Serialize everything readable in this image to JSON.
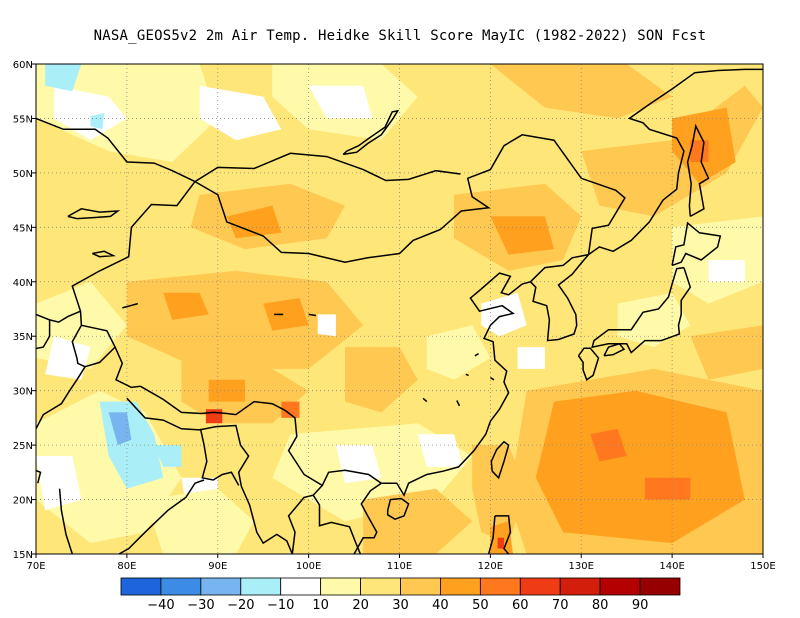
{
  "title": "NASA_GEOS5v2  2m Air Temp. Heidke Skill Score MayIC (1982-2022) SON Fcst",
  "map": {
    "lon_range": [
      70,
      150
    ],
    "lat_range": [
      15,
      60
    ],
    "lon_ticks": [
      "70E",
      "80E",
      "90E",
      "100E",
      "110E",
      "120E",
      "130E",
      "140E",
      "150E"
    ],
    "lat_ticks": [
      "15N",
      "20N",
      "25N",
      "30N",
      "35N",
      "40N",
      "45N",
      "50N",
      "55N",
      "60N"
    ]
  },
  "colorbar": {
    "colors": [
      "#1e64dc",
      "#3c8ce6",
      "#78b4f0",
      "#aaeef8",
      "#ffffff",
      "#fffaaa",
      "#ffe678",
      "#ffc850",
      "#ffa01e",
      "#ff781e",
      "#f03c14",
      "#d21e0a",
      "#b40000",
      "#960000"
    ],
    "labels": [
      "−40",
      "−30",
      "−20",
      "−10",
      "10",
      "20",
      "30",
      "40",
      "50",
      "60",
      "70",
      "80",
      "90"
    ]
  },
  "regions": {
    "base_color": "#ffe678",
    "patches": [
      {
        "c": "#fffaaa",
        "pts": [
          [
            70,
            60
          ],
          [
            88,
            60
          ],
          [
            90,
            55
          ],
          [
            85,
            51
          ],
          [
            78,
            52
          ],
          [
            70,
            55
          ]
        ]
      },
      {
        "c": "#ffffff",
        "pts": [
          [
            72,
            58
          ],
          [
            78,
            57
          ],
          [
            80,
            55
          ],
          [
            76,
            53
          ],
          [
            72,
            55
          ]
        ]
      },
      {
        "c": "#aaeef8",
        "pts": [
          [
            71,
            60
          ],
          [
            75,
            60
          ],
          [
            74,
            57.5
          ],
          [
            71,
            58
          ]
        ]
      },
      {
        "c": "#aaeef8",
        "pts": [
          [
            76,
            55.2
          ],
          [
            77.5,
            55.5
          ],
          [
            77.3,
            54
          ],
          [
            76,
            54.3
          ]
        ]
      },
      {
        "c": "#ffffff",
        "pts": [
          [
            88,
            58
          ],
          [
            95,
            57
          ],
          [
            97,
            54
          ],
          [
            92,
            53
          ],
          [
            88,
            55
          ]
        ]
      },
      {
        "c": "#fffaaa",
        "pts": [
          [
            96,
            60
          ],
          [
            108,
            60
          ],
          [
            112,
            57
          ],
          [
            108,
            53
          ],
          [
            100,
            54
          ],
          [
            96,
            57
          ]
        ]
      },
      {
        "c": "#ffffff",
        "pts": [
          [
            100,
            58
          ],
          [
            106,
            58
          ],
          [
            107,
            55
          ],
          [
            102,
            55
          ]
        ]
      },
      {
        "c": "#ffc850",
        "pts": [
          [
            120,
            60
          ],
          [
            135,
            60
          ],
          [
            140,
            57
          ],
          [
            134,
            55
          ],
          [
            126,
            56
          ]
        ]
      },
      {
        "c": "#ffc850",
        "pts": [
          [
            130,
            52
          ],
          [
            140,
            53
          ],
          [
            148,
            58
          ],
          [
            150,
            56
          ],
          [
            146,
            50
          ],
          [
            138,
            46
          ],
          [
            132,
            47
          ]
        ]
      },
      {
        "c": "#ffa01e",
        "pts": [
          [
            140,
            55
          ],
          [
            146,
            56
          ],
          [
            147,
            51
          ],
          [
            143,
            49
          ],
          [
            140,
            52
          ]
        ]
      },
      {
        "c": "#ff781e",
        "pts": [
          [
            142,
            53
          ],
          [
            144,
            53
          ],
          [
            144,
            51
          ],
          [
            142,
            51
          ]
        ]
      },
      {
        "c": "#ffc850",
        "pts": [
          [
            88,
            48
          ],
          [
            98,
            49
          ],
          [
            104,
            47
          ],
          [
            102,
            44
          ],
          [
            93,
            43
          ],
          [
            87,
            45
          ]
        ]
      },
      {
        "c": "#ffa01e",
        "pts": [
          [
            91,
            46
          ],
          [
            96,
            47
          ],
          [
            97,
            44.5
          ],
          [
            92,
            44
          ]
        ]
      },
      {
        "c": "#ffc850",
        "pts": [
          [
            116,
            48
          ],
          [
            126,
            49
          ],
          [
            130,
            46
          ],
          [
            128,
            42
          ],
          [
            122,
            41
          ],
          [
            116,
            44
          ]
        ]
      },
      {
        "c": "#ffa01e",
        "pts": [
          [
            120,
            46
          ],
          [
            126,
            46
          ],
          [
            127,
            43
          ],
          [
            122,
            42.5
          ]
        ]
      },
      {
        "c": "#ffc850",
        "pts": [
          [
            80,
            40
          ],
          [
            92,
            41
          ],
          [
            102,
            40
          ],
          [
            106,
            36
          ],
          [
            100,
            32
          ],
          [
            88,
            32
          ],
          [
            80,
            35
          ]
        ]
      },
      {
        "c": "#ffa01e",
        "pts": [
          [
            95,
            38
          ],
          [
            99,
            38.5
          ],
          [
            100,
            36
          ],
          [
            96,
            35.5
          ]
        ]
      },
      {
        "c": "#ffa01e",
        "pts": [
          [
            84,
            39
          ],
          [
            88,
            39
          ],
          [
            89,
            37
          ],
          [
            85,
            36.5
          ]
        ]
      },
      {
        "c": "#fffaaa",
        "pts": [
          [
            70,
            38
          ],
          [
            76,
            40
          ],
          [
            80,
            36
          ],
          [
            76,
            32
          ],
          [
            70,
            33
          ]
        ]
      },
      {
        "c": "#ffffff",
        "pts": [
          [
            72,
            35
          ],
          [
            76,
            34
          ],
          [
            75,
            31
          ],
          [
            71,
            31.5
          ]
        ]
      },
      {
        "c": "#ffffff",
        "pts": [
          [
            101,
            37
          ],
          [
            103,
            37
          ],
          [
            103,
            35
          ],
          [
            101,
            35.2
          ]
        ]
      },
      {
        "c": "#ffc850",
        "pts": [
          [
            86,
            33
          ],
          [
            96,
            32
          ],
          [
            100,
            30
          ],
          [
            96,
            27
          ],
          [
            90,
            27
          ],
          [
            86,
            29
          ]
        ]
      },
      {
        "c": "#ffa01e",
        "pts": [
          [
            89,
            31
          ],
          [
            93,
            31
          ],
          [
            93,
            29
          ],
          [
            89,
            29
          ]
        ]
      },
      {
        "c": "#ff781e",
        "pts": [
          [
            97,
            29
          ],
          [
            99,
            29
          ],
          [
            99,
            27.5
          ],
          [
            97,
            27.5
          ]
        ]
      },
      {
        "c": "#f03c14",
        "pts": [
          [
            88.7,
            28.3
          ],
          [
            90.5,
            28.3
          ],
          [
            90.5,
            27
          ],
          [
            88.7,
            27
          ]
        ]
      },
      {
        "c": "#fffaaa",
        "pts": [
          [
            70,
            27
          ],
          [
            77,
            30
          ],
          [
            82,
            28
          ],
          [
            86,
            22
          ],
          [
            82,
            17
          ],
          [
            76,
            16
          ],
          [
            70,
            20
          ]
        ]
      },
      {
        "c": "#aaeef8",
        "pts": [
          [
            77,
            29
          ],
          [
            81,
            29
          ],
          [
            83,
            26
          ],
          [
            84,
            22
          ],
          [
            80,
            21
          ],
          [
            78,
            24
          ]
        ]
      },
      {
        "c": "#78b4f0",
        "pts": [
          [
            78,
            28
          ],
          [
            80,
            28
          ],
          [
            80.5,
            25.5
          ],
          [
            79,
            25
          ]
        ]
      },
      {
        "c": "#aaeef8",
        "pts": [
          [
            83,
            25
          ],
          [
            86,
            25
          ],
          [
            86,
            23
          ],
          [
            84,
            23
          ]
        ]
      },
      {
        "c": "#ffffff",
        "pts": [
          [
            70,
            24
          ],
          [
            74,
            24
          ],
          [
            75,
            20
          ],
          [
            71,
            19
          ]
        ]
      },
      {
        "c": "#ffffff",
        "pts": [
          [
            86,
            22
          ],
          [
            90,
            22
          ],
          [
            90,
            18
          ],
          [
            87,
            17
          ]
        ]
      },
      {
        "c": "#fffaaa",
        "pts": [
          [
            98,
            26
          ],
          [
            112,
            27
          ],
          [
            118,
            24
          ],
          [
            114,
            20
          ],
          [
            104,
            18
          ],
          [
            96,
            22
          ]
        ]
      },
      {
        "c": "#ffffff",
        "pts": [
          [
            103,
            25
          ],
          [
            107,
            25
          ],
          [
            108,
            22
          ],
          [
            104,
            21.5
          ]
        ]
      },
      {
        "c": "#ffffff",
        "pts": [
          [
            112,
            26
          ],
          [
            116,
            26
          ],
          [
            117,
            23
          ],
          [
            113,
            23
          ]
        ]
      },
      {
        "c": "#ffc850",
        "pts": [
          [
            104,
            34
          ],
          [
            110,
            34
          ],
          [
            112,
            31
          ],
          [
            108,
            28
          ],
          [
            104,
            29
          ]
        ]
      },
      {
        "c": "#fffaaa",
        "pts": [
          [
            113,
            35
          ],
          [
            118,
            36
          ],
          [
            120,
            33
          ],
          [
            116,
            31
          ],
          [
            113,
            32
          ]
        ]
      },
      {
        "c": "#ffffff",
        "pts": [
          [
            119,
            38
          ],
          [
            123,
            39
          ],
          [
            124,
            36
          ],
          [
            121,
            35
          ],
          [
            119,
            36
          ]
        ]
      },
      {
        "c": "#ffffff",
        "pts": [
          [
            123,
            34
          ],
          [
            126,
            34
          ],
          [
            126,
            32
          ],
          [
            123,
            32
          ]
        ]
      },
      {
        "c": "#ffc850",
        "pts": [
          [
            118,
            25
          ],
          [
            122,
            25
          ],
          [
            124,
            21
          ],
          [
            122,
            16
          ],
          [
            119,
            17
          ],
          [
            118,
            21
          ]
        ]
      },
      {
        "c": "#ffa01e",
        "pts": [
          [
            120,
            17.5
          ],
          [
            122,
            18
          ],
          [
            122.5,
            15
          ],
          [
            120,
            15
          ]
        ]
      },
      {
        "c": "#f03c14",
        "pts": [
          [
            120.8,
            16.5
          ],
          [
            121.5,
            16.5
          ],
          [
            121.5,
            15.5
          ],
          [
            120.8,
            15.5
          ]
        ]
      },
      {
        "c": "#ffc850",
        "pts": [
          [
            106,
            20
          ],
          [
            114,
            21
          ],
          [
            118,
            18
          ],
          [
            114,
            15
          ],
          [
            106,
            15
          ]
        ]
      },
      {
        "c": "#fffaaa",
        "pts": [
          [
            82,
            20
          ],
          [
            90,
            21
          ],
          [
            94,
            18
          ],
          [
            92,
            15
          ],
          [
            84,
            15
          ]
        ]
      },
      {
        "c": "#ffc850",
        "pts": [
          [
            124,
            30
          ],
          [
            138,
            32
          ],
          [
            150,
            30
          ],
          [
            150,
            15
          ],
          [
            124,
            15
          ],
          [
            122,
            20
          ]
        ]
      },
      {
        "c": "#ffa01e",
        "pts": [
          [
            127,
            29
          ],
          [
            136,
            30
          ],
          [
            146,
            28
          ],
          [
            148,
            20
          ],
          [
            140,
            16
          ],
          [
            128,
            17
          ],
          [
            125,
            22
          ]
        ]
      },
      {
        "c": "#ff781e",
        "pts": [
          [
            131,
            26
          ],
          [
            134,
            26.5
          ],
          [
            135,
            24
          ],
          [
            132,
            23.5
          ]
        ]
      },
      {
        "c": "#ff781e",
        "pts": [
          [
            137,
            22
          ],
          [
            142,
            22
          ],
          [
            142,
            20
          ],
          [
            137,
            20
          ]
        ]
      },
      {
        "c": "#fffaaa",
        "pts": [
          [
            140,
            45
          ],
          [
            150,
            46
          ],
          [
            150,
            40
          ],
          [
            144,
            38
          ],
          [
            140,
            40
          ]
        ]
      },
      {
        "c": "#ffffff",
        "pts": [
          [
            144,
            42
          ],
          [
            148,
            42
          ],
          [
            148,
            40
          ],
          [
            144,
            40
          ]
        ]
      },
      {
        "c": "#fffaaa",
        "pts": [
          [
            134,
            38
          ],
          [
            140,
            39
          ],
          [
            142,
            36
          ],
          [
            138,
            34
          ],
          [
            134,
            35
          ]
        ]
      },
      {
        "c": "#ffc850",
        "pts": [
          [
            142,
            35
          ],
          [
            150,
            36
          ],
          [
            150,
            32
          ],
          [
            144,
            31
          ]
        ]
      }
    ]
  }
}
